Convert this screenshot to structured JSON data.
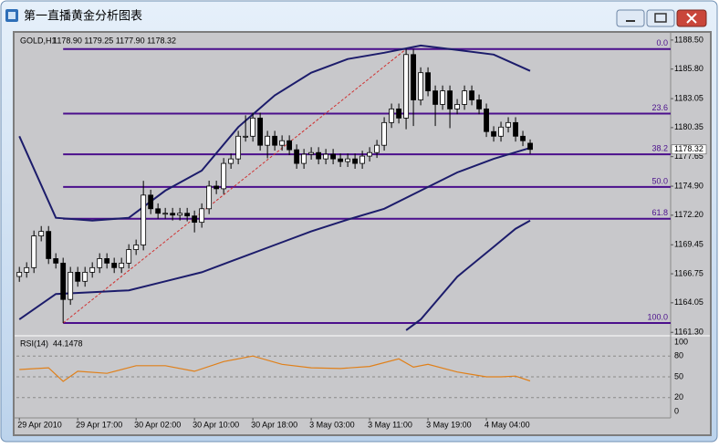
{
  "window": {
    "title": "第一直播黄金分析图表"
  },
  "chart_data": [
    {
      "type": "candlestick",
      "symbol": "GOLD,H1",
      "ohlc_label": "1178.90 1179.25 1177.90 1178.32",
      "open": [
        1166.5,
        1166.89,
        1167.32,
        1170.27,
        1170.69,
        1168.16,
        1167.74,
        1164.36,
        1166.89,
        1166.05,
        1166.89,
        1167.32,
        1168.16,
        1167.74,
        1167.32,
        1167.74,
        1169.0,
        1169.43,
        1174.07,
        1172.8,
        1172.38,
        1172.38,
        1172.21,
        1172.38,
        1172.13,
        1171.54,
        1172.8,
        1174.91,
        1174.66,
        1177.02,
        1177.44,
        1179.55,
        1179.55,
        1181.24,
        1178.71,
        1179.55,
        1178.71,
        1179.13,
        1178.29,
        1177.02,
        1177.87,
        1178.03,
        1177.44,
        1177.87,
        1177.44,
        1177.19,
        1177.44,
        1177.02,
        1177.7,
        1178.03,
        1178.71,
        1180.82,
        1182.09,
        1181.24,
        1187.15,
        1182.93,
        1185.46,
        1183.77,
        1182.51,
        1183.77,
        1182.09,
        1182.51,
        1183.77,
        1182.93,
        1182.09,
        1179.98,
        1179.55,
        1180.4,
        1180.82,
        1179.55,
        1178.9
      ],
      "high": [
        1167.39,
        1167.82,
        1170.77,
        1171.19,
        1171.19,
        1168.66,
        1168.24,
        1167.39,
        1167.39,
        1167.39,
        1167.82,
        1168.66,
        1168.66,
        1168.24,
        1168.24,
        1169.5,
        1169.93,
        1175.4,
        1174.57,
        1173.3,
        1172.88,
        1172.88,
        1172.88,
        1172.88,
        1172.63,
        1173.3,
        1175.41,
        1175.41,
        1177.52,
        1177.94,
        1180.05,
        1181.5,
        1181.74,
        1181.74,
        1180.05,
        1180.05,
        1179.63,
        1179.63,
        1178.79,
        1178.37,
        1178.53,
        1178.53,
        1178.37,
        1178.37,
        1177.94,
        1177.94,
        1177.94,
        1178.2,
        1178.53,
        1179.21,
        1181.32,
        1182.59,
        1182.59,
        1187.66,
        1187.65,
        1185.96,
        1185.96,
        1184.27,
        1184.27,
        1184.27,
        1183.01,
        1184.27,
        1184.27,
        1183.43,
        1182.59,
        1180.48,
        1180.9,
        1181.32,
        1181.32,
        1180.05,
        1179.25
      ],
      "low": [
        1166.0,
        1166.39,
        1166.82,
        1169.77,
        1167.66,
        1167.24,
        1162.17,
        1163.86,
        1165.55,
        1165.55,
        1166.39,
        1166.82,
        1167.24,
        1166.82,
        1166.82,
        1167.24,
        1168.5,
        1168.93,
        1172.3,
        1171.88,
        1171.88,
        1171.71,
        1171.71,
        1171.63,
        1170.6,
        1171.04,
        1172.3,
        1174.16,
        1174.16,
        1176.52,
        1176.94,
        1179.05,
        1179.05,
        1178.21,
        1177.5,
        1178.21,
        1178.21,
        1177.79,
        1176.52,
        1176.52,
        1177.37,
        1176.94,
        1176.94,
        1176.94,
        1176.69,
        1176.69,
        1176.52,
        1176.52,
        1177.2,
        1177.53,
        1178.21,
        1180.32,
        1180.74,
        1180.2,
        1180.5,
        1182.43,
        1183.27,
        1180.5,
        1182.01,
        1180.3,
        1181.59,
        1182.01,
        1182.43,
        1181.59,
        1179.48,
        1179.05,
        1179.05,
        1179.9,
        1179.05,
        1178.63,
        1177.9
      ],
      "close": [
        1166.89,
        1167.32,
        1170.27,
        1170.69,
        1168.16,
        1167.74,
        1164.36,
        1166.89,
        1166.05,
        1166.89,
        1167.32,
        1168.16,
        1167.74,
        1167.32,
        1167.74,
        1169.0,
        1169.43,
        1174.07,
        1172.8,
        1172.38,
        1172.38,
        1172.21,
        1172.38,
        1172.13,
        1171.54,
        1172.8,
        1174.91,
        1174.66,
        1177.02,
        1177.44,
        1179.55,
        1179.55,
        1181.24,
        1178.71,
        1179.55,
        1178.71,
        1179.13,
        1178.29,
        1177.02,
        1177.87,
        1178.03,
        1177.44,
        1177.87,
        1177.44,
        1177.19,
        1177.44,
        1177.02,
        1177.7,
        1178.03,
        1178.71,
        1180.82,
        1182.09,
        1181.24,
        1187.15,
        1182.93,
        1185.46,
        1183.77,
        1182.51,
        1183.77,
        1182.09,
        1182.51,
        1183.77,
        1182.93,
        1182.09,
        1179.98,
        1179.55,
        1180.4,
        1180.82,
        1179.55,
        1179.13,
        1178.32
      ],
      "xlim": [
        -0.4,
        89.25
      ],
      "ylim": [
        1161.15,
        1189.0
      ],
      "xticks": [
        {
          "value": 0,
          "label": "29 Apr 2010"
        },
        {
          "value": 8,
          "label": "29 Apr 17:00"
        },
        {
          "value": 16,
          "label": "30 Apr 02:00"
        },
        {
          "value": 24,
          "label": "30 Apr 10:00"
        },
        {
          "value": 32,
          "label": "30 Apr 18:00"
        },
        {
          "value": 40,
          "label": "3 May 03:00"
        },
        {
          "value": 48,
          "label": "3 May 11:00"
        },
        {
          "value": 56,
          "label": "3 May 19:00"
        },
        {
          "value": 64,
          "label": "4 May 04:00"
        }
      ],
      "yticks": [
        {
          "value": 1188.5,
          "label": "1188.50"
        },
        {
          "value": 1185.8,
          "label": "1185.80"
        },
        {
          "value": 1183.05,
          "label": "1183.05"
        },
        {
          "value": 1180.35,
          "label": "1180.35"
        },
        {
          "value": 1177.65,
          "label": "1177.65"
        },
        {
          "value": 1174.9,
          "label": "1174.90"
        },
        {
          "value": 1172.2,
          "label": "1172.20"
        },
        {
          "value": 1169.45,
          "label": "1169.45"
        },
        {
          "value": 1166.75,
          "label": "1166.75"
        },
        {
          "value": 1164.05,
          "label": "1164.05"
        },
        {
          "value": 1161.3,
          "label": "1161.30"
        }
      ],
      "bands": [
        {
          "color": "#1c1c6b",
          "x": [
            0,
            5,
            10,
            15,
            20,
            25,
            30,
            35,
            40,
            45,
            50,
            55,
            60,
            65,
            70
          ],
          "values": [
            1179.55,
            1171.96,
            1171.7,
            1171.96,
            1174.49,
            1176.35,
            1180.4,
            1183.35,
            1185.46,
            1186.73,
            1187.32,
            1187.99,
            1187.57,
            1187.15,
            1185.63
          ]
        },
        {
          "color": "#1c1c6b",
          "x": [
            0,
            5,
            10,
            15,
            20,
            25,
            30,
            35,
            40,
            45,
            50,
            55,
            60,
            65,
            70
          ],
          "values": [
            1162.5,
            1164.87,
            1165.04,
            1165.21,
            1166.05,
            1166.89,
            1168.16,
            1169.43,
            1170.69,
            1171.79,
            1172.8,
            1174.49,
            1176.18,
            1177.44,
            1178.46
          ]
        },
        {
          "color": "#1c1c6b",
          "x": [
            53,
            55,
            60,
            65,
            68,
            70
          ],
          "values": [
            1161.5,
            1162.5,
            1166.47,
            1169.26,
            1170.94,
            1171.7
          ]
        }
      ],
      "fib_color": "#4b0f8c",
      "fib_levels": [
        {
          "value": 1187.66,
          "label": "0.0"
        },
        {
          "value": 1181.66,
          "label": "23.6"
        },
        {
          "value": 1177.87,
          "label": "38.2"
        },
        {
          "value": 1174.83,
          "label": "50.0"
        },
        {
          "value": 1171.87,
          "label": "61.8"
        },
        {
          "value": 1162.17,
          "label": "100.0"
        }
      ],
      "trendline_bars": [
        6,
        53
      ],
      "trendline_color": "#d03030"
    },
    {
      "type": "line",
      "name": "RSI(14)",
      "color": "#e0801a",
      "x": [
        0,
        4,
        6,
        8,
        12,
        16,
        20,
        24,
        28,
        32,
        36,
        40,
        44,
        48,
        52,
        54,
        56,
        60,
        64,
        66,
        68,
        70
      ],
      "values": [
        60.5,
        63,
        43.4,
        58,
        55,
        66,
        66,
        58,
        72,
        80,
        68,
        63,
        62,
        65,
        76,
        64,
        68,
        57,
        50,
        50,
        51,
        44.1478
      ],
      "ylim": [
        -7.9,
        106.6
      ],
      "yticks": [
        100,
        80,
        50,
        20,
        0
      ]
    }
  ]
}
